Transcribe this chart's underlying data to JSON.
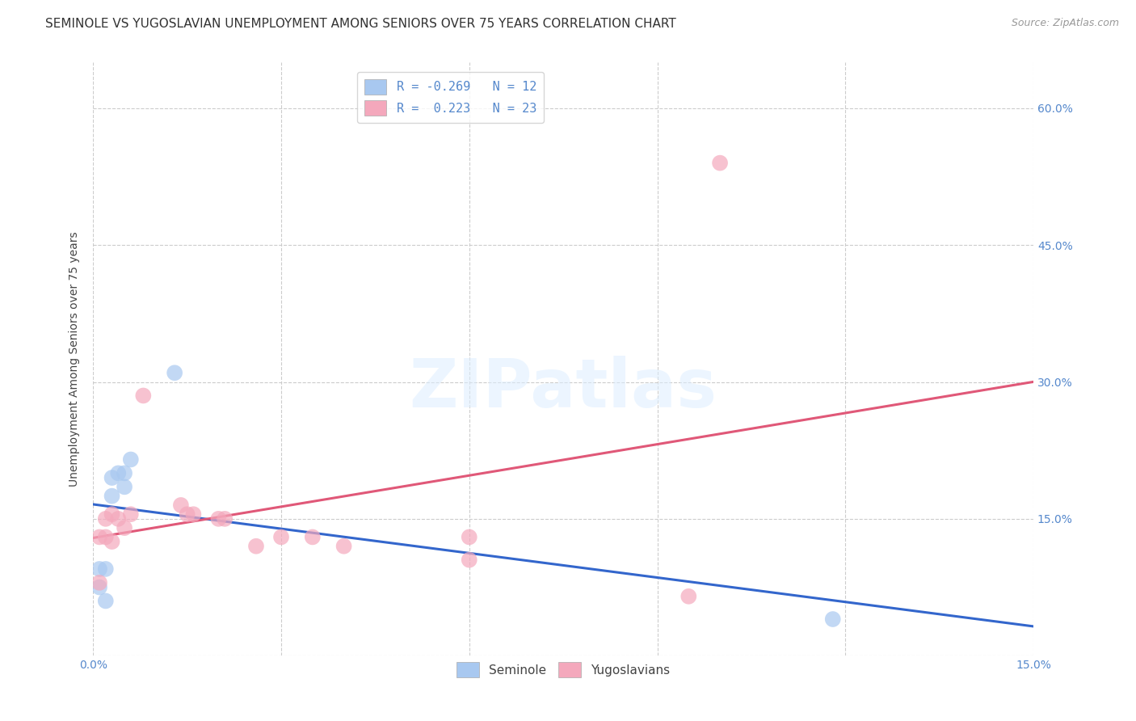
{
  "title": "SEMINOLE VS YUGOSLAVIAN UNEMPLOYMENT AMONG SENIORS OVER 75 YEARS CORRELATION CHART",
  "source": "Source: ZipAtlas.com",
  "ylabel": "Unemployment Among Seniors over 75 years",
  "xlim": [
    0.0,
    0.15
  ],
  "ylim": [
    0.0,
    0.65
  ],
  "xticks": [
    0.0,
    0.03,
    0.06,
    0.09,
    0.12,
    0.15
  ],
  "yticks_left": [
    0.0,
    0.15,
    0.3,
    0.45,
    0.6
  ],
  "yticks_right": [
    0.15,
    0.3,
    0.45,
    0.6
  ],
  "seminole_color": "#a8c8f0",
  "yugoslavian_color": "#f4a8bc",
  "seminole_line_color": "#3366cc",
  "yugoslavian_line_color": "#e05878",
  "seminole_line_dashed": false,
  "yugoslavian_line_dashed": true,
  "legend_seminole_label": "R = -0.269   N = 12",
  "legend_yugoslavian_label": "R =  0.223   N = 23",
  "legend_title_seminole": "Seminole",
  "legend_title_yugoslavian": "Yugoslavians",
  "seminole_x": [
    0.001,
    0.001,
    0.002,
    0.002,
    0.003,
    0.003,
    0.004,
    0.005,
    0.005,
    0.006,
    0.013,
    0.118
  ],
  "seminole_y": [
    0.075,
    0.095,
    0.06,
    0.095,
    0.175,
    0.195,
    0.2,
    0.185,
    0.2,
    0.215,
    0.31,
    0.04
  ],
  "yugoslavian_x": [
    0.001,
    0.001,
    0.002,
    0.002,
    0.003,
    0.003,
    0.004,
    0.005,
    0.006,
    0.008,
    0.014,
    0.015,
    0.016,
    0.02,
    0.021,
    0.026,
    0.03,
    0.035,
    0.04,
    0.06,
    0.06,
    0.095,
    0.1
  ],
  "yugoslavian_y": [
    0.08,
    0.13,
    0.13,
    0.15,
    0.125,
    0.155,
    0.15,
    0.14,
    0.155,
    0.285,
    0.165,
    0.155,
    0.155,
    0.15,
    0.15,
    0.12,
    0.13,
    0.13,
    0.12,
    0.105,
    0.13,
    0.065,
    0.54
  ],
  "grid_color": "#cccccc",
  "background_color": "#ffffff",
  "title_fontsize": 11,
  "axis_label_fontsize": 10,
  "tick_fontsize": 10,
  "source_fontsize": 9,
  "tick_color": "#5588cc"
}
